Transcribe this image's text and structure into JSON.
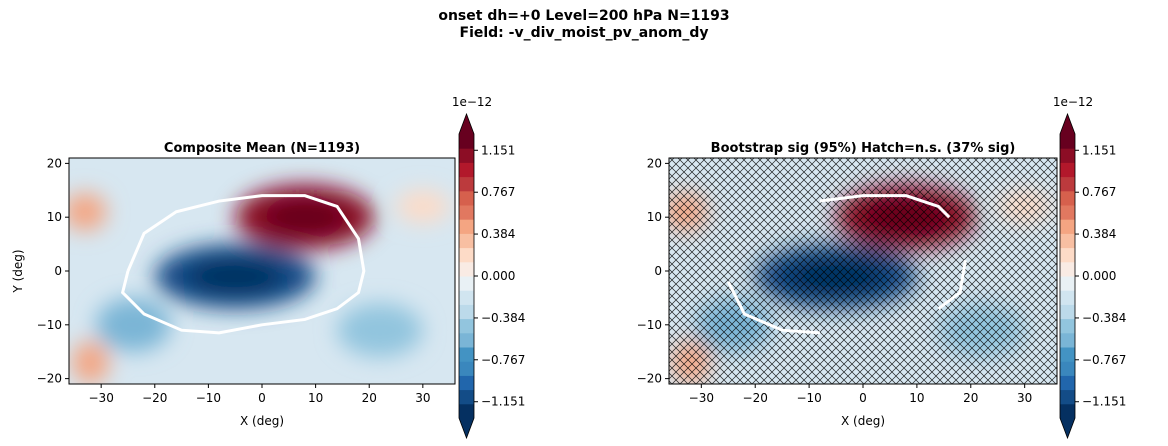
{
  "figure": {
    "title_line1": "onset  dh=+0   Level=200 hPa   N=1193",
    "title_line2": "Field: -v_div_moist_pv_anom_dy"
  },
  "chart_data": [
    {
      "type": "heatmap",
      "title": "Composite Mean  (N=1193)",
      "xlabel": "X (deg)",
      "ylabel": "Y (deg)",
      "xlim": [
        -36,
        36
      ],
      "ylim": [
        -21,
        21
      ],
      "xticks": [
        -30,
        -20,
        -10,
        0,
        10,
        20,
        30
      ],
      "yticks": [
        -20,
        -10,
        0,
        10,
        20
      ],
      "field_units_scale": "1e−12",
      "anomaly_blobs": [
        {
          "x": 8,
          "y": 10,
          "value": 1.1,
          "label": "positive maximum"
        },
        {
          "x": -5,
          "y": -1,
          "value": -1.15,
          "label": "negative minimum"
        },
        {
          "x": -33,
          "y": 11,
          "value": 0.4
        },
        {
          "x": -32,
          "y": -17,
          "value": 0.4
        },
        {
          "x": 30,
          "y": 12,
          "value": 0.2
        },
        {
          "x": -24,
          "y": -10,
          "value": -0.55
        },
        {
          "x": 22,
          "y": -11,
          "value": -0.5
        }
      ],
      "contour": {
        "color": "#ffffff",
        "points": [
          [
            -25,
            0
          ],
          [
            -22,
            7
          ],
          [
            -16,
            11
          ],
          [
            -8,
            13
          ],
          [
            0,
            14
          ],
          [
            8,
            14
          ],
          [
            14,
            12
          ],
          [
            18,
            6
          ],
          [
            19,
            0
          ],
          [
            18,
            -4
          ],
          [
            14,
            -7
          ],
          [
            8,
            -9
          ],
          [
            0,
            -10
          ],
          [
            -8,
            -11.5
          ],
          [
            -15,
            -11
          ],
          [
            -22,
            -8
          ],
          [
            -26,
            -4
          ],
          [
            -25,
            0
          ]
        ]
      },
      "hatched": false
    },
    {
      "type": "heatmap",
      "title": "Bootstrap sig (95%)  Hatch=n.s.  (37% sig)",
      "xlabel": "X (deg)",
      "ylabel": "",
      "xlim": [
        -36,
        36
      ],
      "ylim": [
        -21,
        21
      ],
      "xticks": [
        -30,
        -20,
        -10,
        0,
        10,
        20,
        30
      ],
      "yticks": [
        -20,
        -10,
        0,
        10,
        20
      ],
      "field_units_scale": "1e−12",
      "significant_fraction_percent": 37,
      "contour_segments": [
        [
          [
            -8,
            13
          ],
          [
            0,
            14
          ],
          [
            8,
            14
          ],
          [
            14,
            12
          ],
          [
            16,
            10
          ]
        ],
        [
          [
            19,
            2
          ],
          [
            18,
            -4
          ],
          [
            14,
            -7
          ]
        ],
        [
          [
            -25,
            -2
          ],
          [
            -22,
            -8
          ],
          [
            -15,
            -11
          ],
          [
            -8,
            -11.5
          ]
        ]
      ],
      "hatched": true
    }
  ],
  "colorbar": {
    "scale_label": "1e−12",
    "ticks": [
      "1.151",
      "0.767",
      "0.384",
      "0.000",
      "−0.384",
      "−0.767",
      "−1.151"
    ],
    "tick_values": [
      1.151,
      0.767,
      0.384,
      0.0,
      -0.384,
      -0.767,
      -1.151
    ],
    "levels_min": -1.3,
    "levels_max": 1.3,
    "n_levels": 20,
    "colormap": "RdBu_r",
    "colors": [
      "#053061",
      "#134c87",
      "#2166ac",
      "#3a87bd",
      "#4393c3",
      "#7ab5d6",
      "#92c5de",
      "#bcdaea",
      "#d1e5f0",
      "#e9f1f5",
      "#f9ebe4",
      "#fddbc7",
      "#f8bfa2",
      "#f4a582",
      "#e17860",
      "#d6604d",
      "#bc3a3d",
      "#b2182b",
      "#8c0d25",
      "#67001f"
    ]
  }
}
